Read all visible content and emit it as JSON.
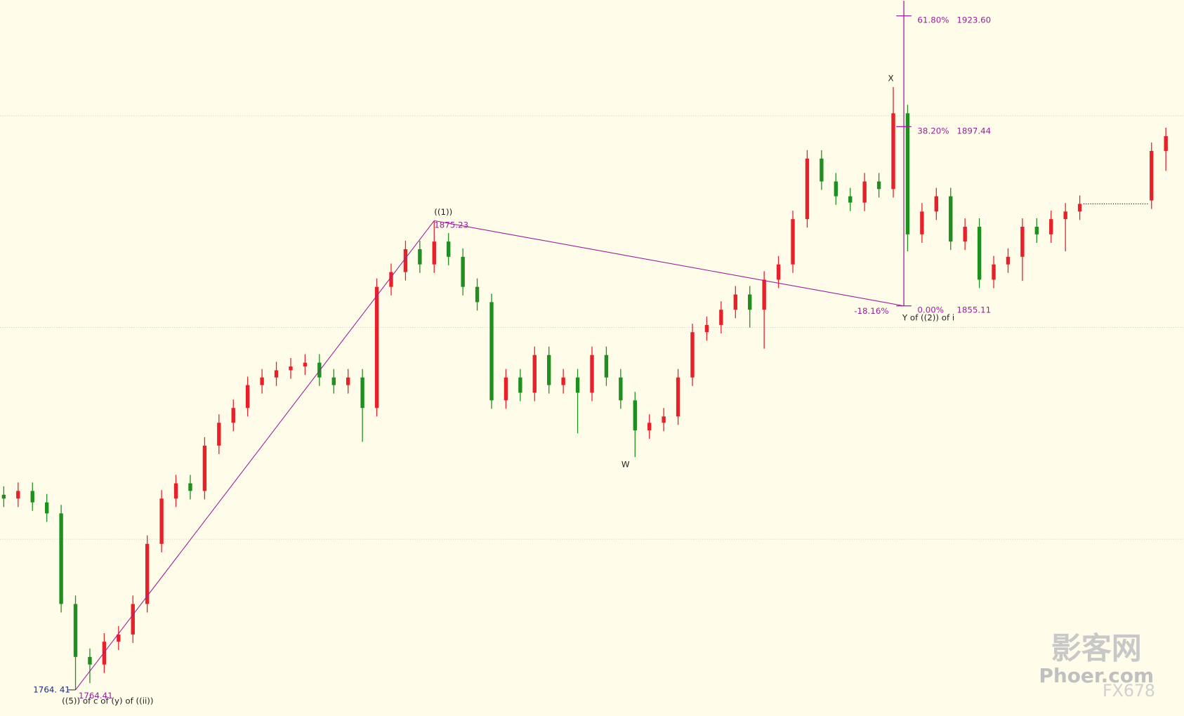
{
  "chart_data": {
    "type": "candlestick",
    "open": [
      1810.5,
      1809.6,
      1811.4,
      1808.7,
      1806.1,
      1784.7,
      1772.2,
      1770.4,
      1775.8,
      1777.5,
      1784.7,
      1798.9,
      1809.6,
      1813.2,
      1811.4,
      1822.1,
      1827.5,
      1831.0,
      1836.4,
      1838.2,
      1839.9,
      1840.8,
      1841.7,
      1838.2,
      1836.4,
      1838.2,
      1831.0,
      1859.6,
      1863.1,
      1868.5,
      1864.9,
      1870.3,
      1866.7,
      1859.6,
      1856.0,
      1832.8,
      1838.2,
      1834.6,
      1843.5,
      1836.4,
      1838.2,
      1834.6,
      1843.5,
      1838.2,
      1832.8,
      1825.7,
      1827.5,
      1829.0,
      1838.2,
      1848.9,
      1850.6,
      1854.2,
      1857.8,
      1854.2,
      1861.3,
      1864.9,
      1875.6,
      1889.9,
      1884.5,
      1881.0,
      1879.5,
      1884.5,
      1882.7,
      1900.6,
      1872.0,
      1877.4,
      1881.0,
      1870.3,
      1873.8,
      1861.3,
      1864.9,
      1866.7,
      1873.8,
      1872.0,
      1875.6,
      1877.4,
      null,
      null,
      null,
      null,
      1880.0,
      1891.7
    ],
    "high": [
      1812.5,
      1813.4,
      1813.4,
      1810.7,
      1808.1,
      1786.7,
      1774.2,
      1777.8,
      1779.5,
      1786.7,
      1800.9,
      1811.6,
      1815.2,
      1815.2,
      1824.1,
      1829.5,
      1833.0,
      1838.4,
      1840.2,
      1841.9,
      1842.8,
      1843.7,
      1843.7,
      1840.2,
      1840.2,
      1840.2,
      1861.6,
      1865.1,
      1870.5,
      1870.5,
      1875.23,
      1872.3,
      1868.7,
      1861.6,
      1858.0,
      1840.2,
      1840.2,
      1845.5,
      1845.5,
      1840.2,
      1840.2,
      1845.5,
      1845.5,
      1840.2,
      1834.8,
      1829.5,
      1831.0,
      1840.2,
      1850.9,
      1852.6,
      1856.2,
      1859.8,
      1859.8,
      1863.3,
      1866.9,
      1877.6,
      1891.9,
      1891.9,
      1886.5,
      1883.0,
      1886.5,
      1886.5,
      1906.8,
      1902.6,
      1879.4,
      1883.0,
      1883.0,
      1875.8,
      1875.8,
      1866.9,
      1868.7,
      1875.8,
      1875.8,
      1877.6,
      1879.4,
      1881.2,
      null,
      null,
      null,
      null,
      1893.7,
      1897.2
    ],
    "low": [
      1807.6,
      1807.6,
      1806.7,
      1804.1,
      1782.7,
      1764.41,
      1766.0,
      1768.4,
      1773.8,
      1775.5,
      1782.7,
      1796.9,
      1807.6,
      1809.4,
      1809.4,
      1820.1,
      1825.5,
      1829.0,
      1834.4,
      1836.2,
      1837.9,
      1838.8,
      1836.2,
      1834.4,
      1834.4,
      1823.0,
      1829.0,
      1857.6,
      1861.1,
      1862.9,
      1862.9,
      1864.7,
      1857.6,
      1854.0,
      1830.8,
      1830.8,
      1832.6,
      1832.6,
      1834.4,
      1834.4,
      1825.0,
      1832.6,
      1836.2,
      1830.8,
      1819.4,
      1823.7,
      1825.5,
      1827.0,
      1836.2,
      1846.9,
      1848.6,
      1852.2,
      1850.0,
      1845.0,
      1859.3,
      1862.9,
      1873.6,
      1882.5,
      1879.0,
      1877.5,
      1877.5,
      1880.7,
      1880.7,
      1868.0,
      1870.0,
      1875.4,
      1868.3,
      1868.3,
      1859.3,
      1859.3,
      1862.9,
      1861.0,
      1870.0,
      1870.0,
      1868.0,
      1875.4,
      null,
      null,
      null,
      null,
      1878.0,
      1887.0
    ],
    "close": [
      1809.6,
      1811.4,
      1808.7,
      1806.1,
      1784.7,
      1772.2,
      1770.4,
      1775.8,
      1777.5,
      1784.7,
      1798.9,
      1809.6,
      1813.2,
      1811.4,
      1822.1,
      1827.5,
      1831.0,
      1836.4,
      1838.2,
      1839.9,
      1840.8,
      1841.7,
      1838.2,
      1836.4,
      1838.2,
      1831.0,
      1859.6,
      1863.1,
      1868.5,
      1864.9,
      1870.3,
      1866.7,
      1859.6,
      1856.0,
      1832.8,
      1838.2,
      1834.6,
      1843.5,
      1836.4,
      1838.2,
      1834.6,
      1843.5,
      1838.2,
      1832.8,
      1825.7,
      1827.5,
      1829.0,
      1838.2,
      1848.9,
      1850.6,
      1854.2,
      1857.8,
      1854.2,
      1861.3,
      1864.9,
      1875.6,
      1889.9,
      1884.5,
      1881.0,
      1879.5,
      1884.5,
      1882.7,
      1900.6,
      1872.0,
      1877.4,
      1881.0,
      1870.3,
      1873.8,
      1861.3,
      1864.9,
      1866.7,
      1873.8,
      1872.0,
      1875.6,
      1877.4,
      1879.2,
      null,
      null,
      null,
      null,
      1891.7,
      1895.2
    ],
    "up_color": "#e8202a",
    "down_color": "#1f8f1f",
    "ylim": [
      1758.3,
      1927.3
    ],
    "gridlines": [
      1800,
      1850,
      1900
    ],
    "fib_color": "#9a1f9a",
    "fib_levels": [
      {
        "percent": "61.80%",
        "price": {
          "value": 1923.6,
          "label": "1923.60"
        }
      },
      {
        "percent": "38.20%",
        "price": 1897.44
      },
      {
        "percent": "0.00%",
        "price": 1855.11
      }
    ],
    "fib_extension": "-18.16%",
    "wave_labels": {
      "start_axis_price": {
        "value": 1764.41,
        "label": "1764. 41"
      },
      "start_price": 1764.41,
      "start": "((5)) of c of (y) of ((ii))",
      "peak": "((1))",
      "peak_price": 1875.23,
      "w": "W",
      "x": "X",
      "y": "Y of ((2)) of i"
    },
    "watermark": {
      "cn": "影客网",
      "site": "Phoer.com",
      "brand": "FX678"
    }
  }
}
